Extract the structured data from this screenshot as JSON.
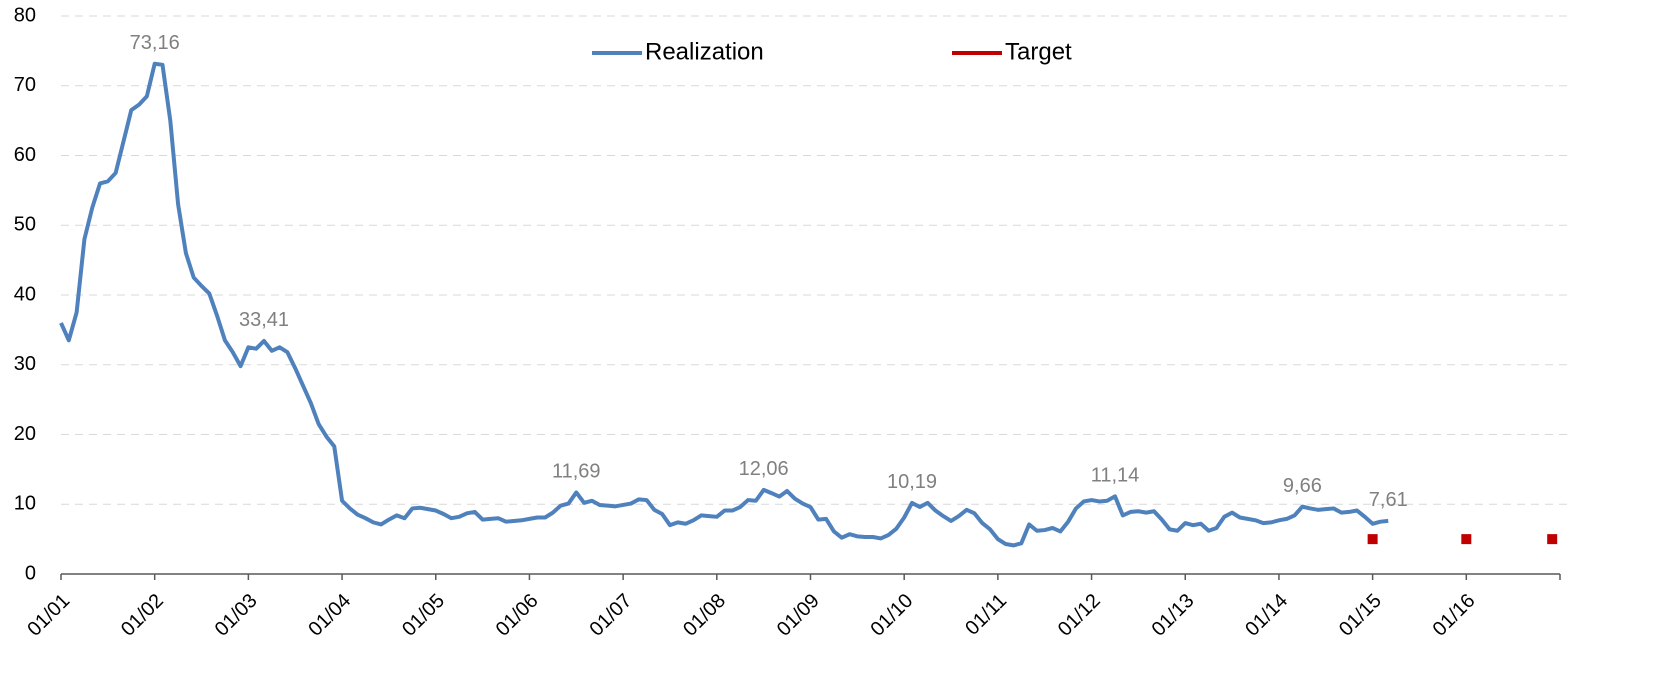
{
  "chart_data": {
    "type": "line",
    "categories": [
      "01/01",
      null,
      null,
      null,
      null,
      null,
      null,
      null,
      null,
      null,
      null,
      null,
      "01/02",
      null,
      null,
      null,
      null,
      null,
      null,
      null,
      null,
      null,
      null,
      null,
      "01/03",
      null,
      null,
      null,
      null,
      null,
      null,
      null,
      null,
      null,
      null,
      null,
      "01/04",
      null,
      null,
      null,
      null,
      null,
      null,
      null,
      null,
      null,
      null,
      null,
      "01/05",
      null,
      null,
      null,
      null,
      null,
      null,
      null,
      null,
      null,
      null,
      null,
      "01/06",
      null,
      null,
      null,
      null,
      null,
      null,
      null,
      null,
      null,
      null,
      null,
      "01/07",
      null,
      null,
      null,
      null,
      null,
      null,
      null,
      null,
      null,
      null,
      null,
      "01/08",
      null,
      null,
      null,
      null,
      null,
      null,
      null,
      null,
      null,
      null,
      null,
      "01/09",
      null,
      null,
      null,
      null,
      null,
      null,
      null,
      null,
      null,
      null,
      null,
      "01/10",
      null,
      null,
      null,
      null,
      null,
      null,
      null,
      null,
      null,
      null,
      null,
      "01/11",
      null,
      null,
      null,
      null,
      null,
      null,
      null,
      null,
      null,
      null,
      null,
      "01/12",
      null,
      null,
      null,
      null,
      null,
      null,
      null,
      null,
      null,
      null,
      null,
      "01/13",
      null,
      null,
      null,
      null,
      null,
      null,
      null,
      null,
      null,
      null,
      null,
      "01/14",
      null,
      null,
      null,
      null,
      null,
      null,
      null,
      null,
      null,
      null,
      null,
      "01/15",
      null,
      null,
      null,
      null,
      null,
      null,
      null,
      null,
      null,
      null,
      null,
      "01/16",
      null,
      null,
      null,
      null,
      null,
      null,
      null,
      null,
      null,
      null,
      null
    ],
    "series": [
      {
        "name": "Realization",
        "color": "#4f81bd",
        "style": "line",
        "values": [
          36,
          33.5,
          37.5,
          48,
          52.5,
          56,
          56.3,
          57.5,
          62,
          66.5,
          67.3,
          68.5,
          73.16,
          73,
          65,
          53,
          46,
          42.5,
          41.3,
          40.2,
          37,
          33.5,
          31.8,
          29.8,
          32.5,
          32.3,
          33.41,
          32,
          32.5,
          31.8,
          29.5,
          27,
          24.5,
          21.5,
          19.7,
          18.3,
          10.5,
          9.4,
          8.5,
          8,
          7.4,
          7.1,
          7.8,
          8.4,
          8,
          9.4,
          9.5,
          9.3,
          9.1,
          8.6,
          8,
          8.2,
          8.7,
          8.9,
          7.8,
          7.9,
          8,
          7.5,
          7.6,
          7.7,
          7.9,
          8.1,
          8.1,
          8.8,
          9.8,
          10.1,
          11.69,
          10.2,
          10.5,
          9.9,
          9.8,
          9.7,
          9.9,
          10.1,
          10.7,
          10.6,
          9.2,
          8.6,
          7,
          7.4,
          7.2,
          7.7,
          8.4,
          8.3,
          8.2,
          9.1,
          9.1,
          9.6,
          10.6,
          10.5,
          12.06,
          11.6,
          11.1,
          11.9,
          10.8,
          10.1,
          9.6,
          7.8,
          7.9,
          6.1,
          5.2,
          5.7,
          5.4,
          5.3,
          5.3,
          5.1,
          5.6,
          6.5,
          8.1,
          10.19,
          9.6,
          10.2,
          9.1,
          8.3,
          7.6,
          8.3,
          9.2,
          8.7,
          7.3,
          6.4,
          5,
          4.3,
          4.1,
          4.4,
          7.1,
          6.2,
          6.3,
          6.6,
          6.1,
          7.5,
          9.4,
          10.4,
          10.6,
          10.4,
          10.5,
          11.14,
          8.4,
          8.9,
          9,
          8.8,
          9,
          7.8,
          6.4,
          6.2,
          7.3,
          7,
          7.2,
          6.2,
          6.6,
          8.2,
          8.8,
          8.1,
          7.9,
          7.7,
          7.3,
          7.4,
          7.7,
          7.9,
          8.4,
          9.66,
          9.4,
          9.2,
          9.3,
          9.4,
          8.8,
          8.9,
          9.1,
          8.2,
          7.2,
          7.5,
          7.61,
          null,
          null,
          null,
          null,
          null,
          null,
          null,
          null,
          null,
          null,
          null,
          null,
          null,
          null,
          null,
          null,
          null,
          null,
          null,
          null,
          null
        ],
        "value_labels": [
          null,
          null,
          null,
          null,
          null,
          null,
          null,
          null,
          null,
          null,
          null,
          null,
          "73,16",
          null,
          null,
          null,
          null,
          null,
          null,
          null,
          null,
          null,
          null,
          null,
          null,
          null,
          "33,41",
          null,
          null,
          null,
          null,
          null,
          null,
          null,
          null,
          null,
          null,
          null,
          null,
          null,
          null,
          null,
          null,
          null,
          null,
          null,
          null,
          null,
          null,
          null,
          null,
          null,
          null,
          null,
          null,
          null,
          null,
          null,
          null,
          null,
          null,
          null,
          null,
          null,
          null,
          null,
          "11,69",
          null,
          null,
          null,
          null,
          null,
          null,
          null,
          null,
          null,
          null,
          null,
          null,
          null,
          null,
          null,
          null,
          null,
          null,
          null,
          null,
          null,
          null,
          null,
          "12,06",
          null,
          null,
          null,
          null,
          null,
          null,
          null,
          null,
          null,
          null,
          null,
          null,
          null,
          null,
          null,
          null,
          null,
          null,
          "10,19",
          null,
          null,
          null,
          null,
          null,
          null,
          null,
          null,
          null,
          null,
          null,
          null,
          null,
          null,
          null,
          null,
          null,
          null,
          null,
          null,
          null,
          null,
          null,
          null,
          null,
          "11,14",
          null,
          null,
          null,
          null,
          null,
          null,
          null,
          null,
          null,
          null,
          null,
          null,
          null,
          null,
          null,
          null,
          null,
          null,
          null,
          null,
          null,
          null,
          null,
          "9,66",
          null,
          null,
          null,
          null,
          null,
          null,
          null,
          null,
          null,
          null,
          "7,61",
          null,
          null,
          null,
          null,
          null,
          null,
          null,
          null,
          null,
          null,
          null,
          null,
          null,
          null,
          null,
          null,
          null,
          null,
          null,
          null,
          null
        ]
      },
      {
        "name": "Target",
        "color": "#c00000",
        "style": "markers",
        "values": [
          null,
          null,
          null,
          null,
          null,
          null,
          null,
          null,
          null,
          null,
          null,
          null,
          null,
          null,
          null,
          null,
          null,
          null,
          null,
          null,
          null,
          null,
          null,
          null,
          null,
          null,
          null,
          null,
          null,
          null,
          null,
          null,
          null,
          null,
          null,
          null,
          null,
          null,
          null,
          null,
          null,
          null,
          null,
          null,
          null,
          null,
          null,
          null,
          null,
          null,
          null,
          null,
          null,
          null,
          null,
          null,
          null,
          null,
          null,
          null,
          null,
          null,
          null,
          null,
          null,
          null,
          null,
          null,
          null,
          null,
          null,
          null,
          null,
          null,
          null,
          null,
          null,
          null,
          null,
          null,
          null,
          null,
          null,
          null,
          null,
          null,
          null,
          null,
          null,
          null,
          null,
          null,
          null,
          null,
          null,
          null,
          null,
          null,
          null,
          null,
          null,
          null,
          null,
          null,
          null,
          null,
          null,
          null,
          null,
          null,
          null,
          null,
          null,
          null,
          null,
          null,
          null,
          null,
          null,
          null,
          null,
          null,
          null,
          null,
          null,
          null,
          null,
          null,
          null,
          null,
          null,
          null,
          null,
          null,
          null,
          null,
          null,
          null,
          null,
          null,
          null,
          null,
          null,
          null,
          null,
          null,
          null,
          null,
          null,
          null,
          null,
          null,
          null,
          null,
          null,
          null,
          null,
          null,
          null,
          null,
          null,
          null,
          null,
          null,
          null,
          null,
          null,
          null,
          5,
          null,
          null,
          null,
          null,
          null,
          null,
          null,
          null,
          null,
          null,
          null,
          5,
          null,
          null,
          null,
          null,
          null,
          null,
          null,
          null,
          null,
          null,
          5
        ]
      }
    ],
    "ylim": [
      0,
      80
    ],
    "yticks": [
      0,
      10,
      20,
      30,
      40,
      50,
      60,
      70,
      80
    ],
    "grid": true,
    "legend": "top"
  }
}
